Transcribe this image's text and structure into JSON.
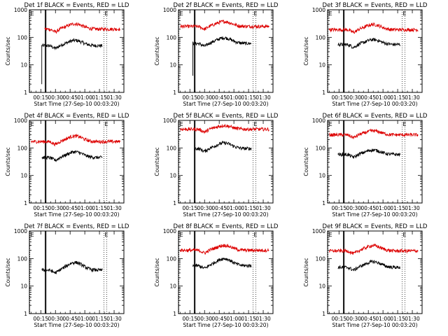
{
  "figure": {
    "time_axis_ticks": [
      "00:15",
      "00:30",
      "00:45",
      "01:00",
      "01:15",
      "01:30"
    ],
    "time_axis_tick_minutes": [
      15,
      30,
      45,
      60,
      75,
      90
    ],
    "xlim_minutes": [
      3.33,
      100
    ],
    "ylim": [
      1,
      1000
    ],
    "ytick_labels": [
      "1",
      "10",
      "100",
      "1000"
    ],
    "ytick_values": [
      1,
      10,
      100,
      1000
    ],
    "xlabel": "Start Time (27-Sep-10 00:03:20)",
    "ylabel": "Counts/sec",
    "event_marker_label": "E",
    "event_marker_minutes": [
      3.8,
      79.5
    ],
    "vertical_line_minutes": [
      19.5,
      20.3,
      82.5
    ],
    "colors": {
      "events": "#000000",
      "lld": "#dd0000",
      "markers": "#000000"
    }
  },
  "chart_data": [
    {
      "type": "line",
      "title": "Det 1f BLACK = Events, RED = LLD",
      "xlabel": "Start Time (27-Sep-10 00:03:20)",
      "ylabel": "Counts/sec",
      "yscale": "log",
      "ylim": [
        1,
        1000
      ],
      "x_ticks": [
        "00:15",
        "00:30",
        "00:45",
        "01:00",
        "01:15",
        "01:30"
      ],
      "series": [
        {
          "name": "Events",
          "color": "#000000",
          "x_start_min": 16,
          "x_end_min": 78,
          "level": 50,
          "bump": 1.55,
          "spike_to": 2
        },
        {
          "name": "LLD",
          "color": "#dd0000",
          "x_start_min": 19,
          "x_end_min": 96,
          "level": 200,
          "bump": 1.55
        }
      ]
    },
    {
      "type": "line",
      "title": "Det 2f BLACK = Events, RED = LLD",
      "xlabel": "Start Time (27-Sep-10 00:03:20)",
      "ylabel": "Counts/sec",
      "yscale": "log",
      "ylim": [
        1,
        1000
      ],
      "x_ticks": [
        "00:15",
        "00:30",
        "00:45",
        "01:00",
        "01:15",
        "01:30"
      ],
      "series": [
        {
          "name": "Events",
          "color": "#000000",
          "x_start_min": 18,
          "x_end_min": 78,
          "level": 60,
          "bump": 1.6,
          "spike_to": 4
        },
        {
          "name": "LLD",
          "color": "#dd0000",
          "x_start_min": 5,
          "x_end_min": 96,
          "level": 250,
          "bump": 1.5
        }
      ]
    },
    {
      "type": "line",
      "title": "Det 3f BLACK = Events, RED = LLD",
      "xlabel": "Start Time (27-Sep-10 00:03:20)",
      "ylabel": "Counts/sec",
      "yscale": "log",
      "ylim": [
        1,
        1000
      ],
      "x_ticks": [
        "00:15",
        "00:30",
        "00:45",
        "01:00",
        "01:15",
        "01:30"
      ],
      "series": [
        {
          "name": "Events",
          "color": "#000000",
          "x_start_min": 14,
          "x_end_min": 78,
          "level": 55,
          "bump": 1.5
        },
        {
          "name": "LLD",
          "color": "#dd0000",
          "x_start_min": 5,
          "x_end_min": 96,
          "level": 190,
          "bump": 1.55
        }
      ]
    },
    {
      "type": "line",
      "title": "Det 4f BLACK = Events, RED = LLD",
      "xlabel": "Start Time (27-Sep-10 00:03:20)",
      "ylabel": "Counts/sec",
      "yscale": "log",
      "ylim": [
        1,
        1000
      ],
      "x_ticks": [
        "00:15",
        "00:30",
        "00:45",
        "01:00",
        "01:15",
        "01:30"
      ],
      "series": [
        {
          "name": "Events",
          "color": "#000000",
          "x_start_min": 16,
          "x_end_min": 78,
          "level": 45,
          "bump": 1.6
        },
        {
          "name": "LLD",
          "color": "#dd0000",
          "x_start_min": 5,
          "x_end_min": 96,
          "level": 170,
          "bump": 1.6
        }
      ]
    },
    {
      "type": "line",
      "title": "Det 5f BLACK = Events, RED = LLD",
      "xlabel": "Start Time (27-Sep-10 00:03:20)",
      "ylabel": "Counts/sec",
      "yscale": "log",
      "ylim": [
        1,
        1000
      ],
      "x_ticks": [
        "00:15",
        "00:30",
        "00:45",
        "01:00",
        "01:15",
        "01:30"
      ],
      "series": [
        {
          "name": "Events",
          "color": "#000000",
          "x_start_min": 20,
          "x_end_min": 78,
          "level": 95,
          "bump": 1.6
        },
        {
          "name": "LLD",
          "color": "#dd0000",
          "x_start_min": 5,
          "x_end_min": 96,
          "level": 480,
          "bump": 1.35
        }
      ]
    },
    {
      "type": "line",
      "title": "Det 6f BLACK = Events, RED = LLD",
      "xlabel": "Start Time (27-Sep-10 00:03:20)",
      "ylabel": "Counts/sec",
      "yscale": "log",
      "ylim": [
        1,
        1000
      ],
      "x_ticks": [
        "00:15",
        "00:30",
        "00:45",
        "01:00",
        "01:15",
        "01:30"
      ],
      "series": [
        {
          "name": "Events",
          "color": "#000000",
          "x_start_min": 14,
          "x_end_min": 78,
          "level": 58,
          "bump": 1.45
        },
        {
          "name": "LLD",
          "color": "#dd0000",
          "x_start_min": 5,
          "x_end_min": 96,
          "level": 300,
          "bump": 1.4
        }
      ]
    },
    {
      "type": "line",
      "title": "Det 7f BLACK = Events, RED = LLD",
      "xlabel": "Start Time (27-Sep-10 00:03:20)",
      "ylabel": "Counts/sec",
      "yscale": "log",
      "ylim": [
        1,
        1000
      ],
      "x_ticks": [
        "00:15",
        "00:30",
        "00:45",
        "01:00",
        "01:15",
        "01:30"
      ],
      "series": [
        {
          "name": "Events",
          "color": "#000000",
          "x_start_min": 16,
          "x_end_min": 78,
          "level": 38,
          "bump": 1.9
        }
      ]
    },
    {
      "type": "line",
      "title": "Det 8f BLACK = Events, RED = LLD",
      "xlabel": "Start Time (27-Sep-10 00:03:20)",
      "ylabel": "Counts/sec",
      "yscale": "log",
      "ylim": [
        1,
        1000
      ],
      "x_ticks": [
        "00:15",
        "00:30",
        "00:45",
        "01:00",
        "01:15",
        "01:30"
      ],
      "series": [
        {
          "name": "Events",
          "color": "#000000",
          "x_start_min": 18,
          "x_end_min": 78,
          "level": 55,
          "bump": 1.8
        },
        {
          "name": "LLD",
          "color": "#dd0000",
          "x_start_min": 5,
          "x_end_min": 96,
          "level": 200,
          "bump": 1.5
        }
      ]
    },
    {
      "type": "line",
      "title": "Det 9f BLACK = Events, RED = LLD",
      "xlabel": "Start Time (27-Sep-10 00:03:20)",
      "ylabel": "Counts/sec",
      "yscale": "log",
      "ylim": [
        1,
        1000
      ],
      "x_ticks": [
        "00:15",
        "00:30",
        "00:45",
        "01:00",
        "01:15",
        "01:30"
      ],
      "series": [
        {
          "name": "Events",
          "color": "#000000",
          "x_start_min": 14,
          "x_end_min": 78,
          "level": 48,
          "bump": 1.6
        },
        {
          "name": "LLD",
          "color": "#dd0000",
          "x_start_min": 5,
          "x_end_min": 96,
          "level": 190,
          "bump": 1.55
        }
      ]
    }
  ]
}
